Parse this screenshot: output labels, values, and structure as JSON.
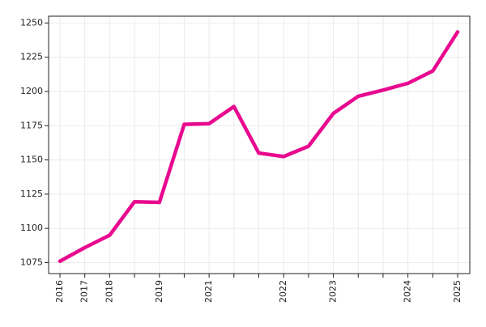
{
  "chart_data": {
    "type": "line",
    "categories": [
      "2016",
      "2017",
      "2018",
      null,
      "2019",
      null,
      "2021",
      null,
      null,
      "2022",
      null,
      "2023",
      null,
      null,
      "2024",
      null,
      "2025"
    ],
    "series": [
      {
        "color": "#e8098f",
        "values": [
          1076,
          1086,
          1095,
          1119.5,
          1119,
          1176,
          1176.5,
          1189,
          1155,
          1152.5,
          1160,
          1184,
          1196.5,
          1201,
          1206,
          1215,
          1243.5
        ]
      }
    ],
    "ylim": [
      1067,
      1255
    ],
    "yticks": [
      1075,
      1100,
      1125,
      1150,
      1175,
      1200,
      1225,
      1250
    ],
    "grid": true
  }
}
